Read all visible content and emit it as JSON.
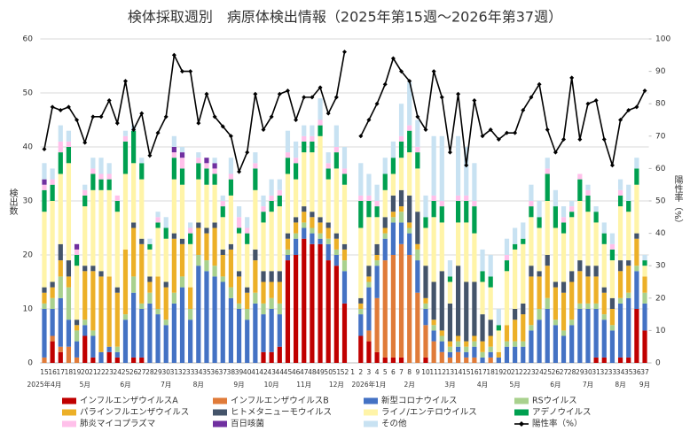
{
  "chart_data": {
    "type": "bar",
    "stacked": true,
    "title": "検体採取週別　病原体検出情報（2025年第15週～2026年第37週）",
    "y_label": "検出数",
    "y2_label": "陽性率（%）",
    "categories": [
      "15",
      "16",
      "17",
      "18",
      "19",
      "20",
      "21",
      "22",
      "23",
      "24",
      "25",
      "26",
      "27",
      "28",
      "29",
      "30",
      "31",
      "32",
      "33",
      "34",
      "35",
      "36",
      "37",
      "38",
      "39",
      "40",
      "41",
      "42",
      "43",
      "44",
      "45",
      "46",
      "47",
      "48",
      "49",
      "50",
      "51",
      "52",
      "1",
      "2",
      "3",
      "4",
      "5",
      "6",
      "7",
      "8",
      "9",
      "10",
      "11",
      "12",
      "13",
      "14",
      "15",
      "16",
      "17",
      "18",
      "19",
      "20",
      "21",
      "22",
      "23",
      "24",
      "25",
      "26",
      "27",
      "28",
      "29",
      "30",
      "31",
      "32",
      "33",
      "34",
      "35",
      "36",
      "37"
    ],
    "x_group_labels": [
      "2025年4月",
      null,
      null,
      null,
      null,
      "5月",
      null,
      null,
      null,
      null,
      "6月",
      null,
      null,
      null,
      null,
      "7月",
      null,
      null,
      null,
      "8月",
      null,
      null,
      null,
      null,
      "9月",
      null,
      null,
      null,
      "10月",
      null,
      null,
      null,
      "11月",
      null,
      null,
      null,
      "12月",
      null,
      null,
      null,
      "2026年1月",
      null,
      null,
      null,
      null,
      "2月",
      null,
      null,
      null,
      null,
      "3月",
      null,
      null,
      null,
      "4月",
      null,
      null,
      null,
      "5月",
      null,
      null,
      null,
      null,
      "6月",
      null,
      null,
      null,
      "7月",
      null,
      null,
      null,
      "8月",
      null,
      null,
      "9月"
    ],
    "ylim": [
      0,
      60
    ],
    "yticks": [
      0,
      10,
      20,
      30,
      40,
      50,
      60
    ],
    "y2lim": [
      0,
      100
    ],
    "y2ticks": [
      0,
      10,
      20,
      30,
      40,
      50,
      60,
      70,
      80,
      90,
      100
    ],
    "grid": true,
    "series": [
      {
        "name": "インフルエンザウイルスA",
        "color": "#c00000",
        "values": [
          0,
          4,
          2,
          0,
          0,
          5,
          1,
          0,
          2,
          1,
          0,
          1,
          1,
          0,
          0,
          0,
          0,
          0,
          0,
          0,
          0,
          0,
          0,
          0,
          0,
          0,
          0,
          2,
          2,
          3,
          19,
          20,
          23,
          22,
          22,
          19,
          18,
          11,
          null,
          5,
          4,
          2,
          1,
          1,
          1,
          0,
          0,
          1,
          0,
          0,
          0,
          0,
          0,
          0,
          0,
          0,
          0,
          0,
          0,
          0,
          0,
          0,
          0,
          0,
          0,
          0,
          0,
          0,
          1,
          1,
          0,
          1,
          1,
          10,
          6
        ]
      },
      {
        "name": "インフルエンザウイルスB",
        "color": "#e07b39",
        "values": [
          1,
          1,
          1,
          3,
          1,
          0,
          0,
          0,
          0,
          0,
          0,
          0,
          0,
          0,
          0,
          0,
          0,
          0,
          0,
          0,
          0,
          0,
          0,
          0,
          0,
          0,
          0,
          0,
          0,
          0,
          0,
          0,
          0,
          0,
          0,
          0,
          0,
          0,
          null,
          0,
          2,
          10,
          18,
          19,
          21,
          20,
          13,
          6,
          4,
          2,
          1,
          2,
          1,
          1,
          0,
          1,
          0,
          0,
          0,
          0,
          0,
          0,
          0,
          0,
          0,
          0,
          0,
          0,
          0,
          0,
          0,
          0,
          0,
          0,
          0
        ]
      },
      {
        "name": "新型コロナウイルス",
        "color": "#4472c4",
        "values": [
          9,
          5,
          9,
          5,
          3,
          2,
          4,
          2,
          1,
          1,
          8,
          12,
          9,
          11,
          9,
          7,
          11,
          14,
          8,
          18,
          17,
          16,
          15,
          12,
          10,
          8,
          11,
          7,
          8,
          6,
          1,
          3,
          2,
          2,
          1,
          3,
          2,
          6,
          null,
          4,
          8,
          6,
          4,
          6,
          4,
          4,
          6,
          3,
          2,
          2,
          1,
          1,
          1,
          2,
          1,
          1,
          1,
          3,
          3,
          3,
          6,
          8,
          10,
          7,
          5,
          7,
          10,
          10,
          9,
          7,
          6,
          10,
          11,
          7,
          5
        ]
      },
      {
        "name": "RSウイルス",
        "color": "#a9d18e",
        "values": [
          1,
          2,
          4,
          6,
          2,
          1,
          1,
          0,
          0,
          1,
          1,
          3,
          1,
          2,
          1,
          1,
          2,
          2,
          2,
          2,
          2,
          2,
          1,
          2,
          1,
          2,
          2,
          2,
          2,
          2,
          1,
          1,
          1,
          1,
          1,
          1,
          1,
          2,
          null,
          1,
          1,
          1,
          1,
          1,
          2,
          1,
          2,
          1,
          1,
          1,
          1,
          1,
          1,
          1,
          1,
          1,
          0,
          1,
          1,
          1,
          1,
          2,
          2,
          1,
          1,
          1,
          1,
          1,
          1,
          1,
          1,
          1,
          1,
          1,
          2
        ]
      },
      {
        "name": "パラインフルエンザウイルス",
        "color": "#ecb028",
        "values": [
          2,
          2,
          3,
          2,
          1,
          9,
          11,
          14,
          13,
          10,
          12,
          9,
          11,
          2,
          6,
          6,
          10,
          6,
          4,
          5,
          5,
          7,
          4,
          7,
          5,
          3,
          6,
          4,
          3,
          4,
          2,
          2,
          2,
          2,
          2,
          2,
          2,
          2,
          null,
          1,
          1,
          1,
          1,
          1,
          1,
          1,
          1,
          1,
          1,
          1,
          1,
          1,
          1,
          1,
          2,
          2,
          1,
          3,
          4,
          5,
          9,
          6,
          6,
          6,
          7,
          7,
          6,
          5,
          5,
          4,
          3,
          5,
          5,
          5,
          3
        ]
      },
      {
        "name": "ヒトメタニューモウイルス",
        "color": "#44546a",
        "values": [
          1,
          1,
          3,
          3,
          1,
          1,
          1,
          1,
          0,
          1,
          0,
          1,
          1,
          1,
          0,
          1,
          1,
          1,
          0,
          1,
          1,
          1,
          1,
          1,
          1,
          1,
          2,
          2,
          2,
          2,
          1,
          1,
          1,
          1,
          1,
          1,
          1,
          1,
          null,
          1,
          2,
          2,
          2,
          3,
          3,
          5,
          6,
          6,
          7,
          11,
          7,
          13,
          11,
          10,
          5,
          3,
          0,
          0,
          2,
          2,
          2,
          1,
          2,
          1,
          2,
          2,
          2,
          2,
          2,
          1,
          2,
          2,
          1,
          1,
          0
        ]
      },
      {
        "name": "ライノ/エンテロウイルス",
        "color": "#fff4a8",
        "values": [
          14,
          15,
          13,
          18,
          10,
          11,
          14,
          15,
          16,
          14,
          14,
          11,
          11,
          5,
          9,
          8,
          10,
          10,
          8,
          8,
          8,
          7,
          6,
          9,
          7,
          8,
          11,
          9,
          11,
          12,
          11,
          7,
          10,
          11,
          15,
          8,
          12,
          11,
          null,
          13,
          9,
          5,
          5,
          4,
          6,
          8,
          8,
          7,
          12,
          9,
          4,
          8,
          11,
          9,
          6,
          6,
          4,
          10,
          11,
          11,
          9,
          8,
          10,
          10,
          9,
          10,
          11,
          10,
          8,
          8,
          7,
          10,
          9,
          9,
          2
        ]
      },
      {
        "name": "アデノウイルス",
        "color": "#00a050",
        "values": [
          4,
          3,
          4,
          3,
          2,
          2,
          3,
          2,
          2,
          2,
          6,
          6,
          3,
          1,
          1,
          2,
          4,
          3,
          2,
          3,
          3,
          2,
          2,
          3,
          1,
          2,
          4,
          2,
          2,
          2,
          3,
          3,
          2,
          2,
          2,
          2,
          3,
          2,
          null,
          5,
          3,
          2,
          3,
          3,
          3,
          4,
          3,
          2,
          3,
          3,
          1,
          4,
          4,
          5,
          2,
          2,
          1,
          2,
          1,
          1,
          2,
          2,
          5,
          4,
          2,
          1,
          4,
          3,
          2,
          2,
          2,
          2,
          2,
          3,
          1
        ]
      },
      {
        "name": "肺炎マイコプラズマ",
        "color": "#ffc0ea",
        "values": [
          1,
          1,
          2,
          1,
          1,
          1,
          1,
          1,
          1,
          1,
          1,
          0,
          0,
          0,
          1,
          0,
          1,
          2,
          1,
          1,
          1,
          1,
          1,
          1,
          2,
          1,
          1,
          1,
          1,
          1,
          1,
          1,
          1,
          1,
          1,
          1,
          1,
          1,
          null,
          1,
          1,
          1,
          0,
          0,
          1,
          1,
          1,
          0,
          1,
          1,
          0,
          1,
          1,
          1,
          0,
          0,
          0,
          1,
          0,
          0,
          1,
          0,
          1,
          0,
          1,
          1,
          1,
          1,
          0,
          0,
          1,
          1,
          0,
          0,
          0
        ]
      },
      {
        "name": "百日咳菌",
        "color": "#7030a0",
        "values": [
          1,
          0,
          0,
          0,
          1,
          0,
          0,
          0,
          0,
          0,
          0,
          0,
          0,
          0,
          0,
          0,
          1,
          1,
          0,
          0,
          1,
          1,
          0,
          0,
          0,
          0,
          0,
          0,
          0,
          0,
          0,
          0,
          0,
          0,
          0,
          0,
          0,
          0,
          null,
          0,
          0,
          0,
          0,
          0,
          0,
          0,
          0,
          0,
          0,
          0,
          0,
          0,
          0,
          0,
          0,
          0,
          0,
          0,
          0,
          0,
          0,
          0,
          0,
          0,
          0,
          0,
          0,
          0,
          0,
          0,
          0,
          0,
          0,
          0,
          0
        ]
      },
      {
        "name": "その他",
        "color": "#c8e2f2",
        "values": [
          3,
          2,
          3,
          2,
          0,
          1,
          2,
          3,
          2,
          0,
          1,
          1,
          1,
          1,
          1,
          2,
          2,
          1,
          1,
          1,
          0,
          1,
          1,
          3,
          2,
          2,
          2,
          2,
          3,
          2,
          4,
          3,
          2,
          2,
          4,
          2,
          4,
          4,
          null,
          6,
          4,
          3,
          3,
          3,
          6,
          8,
          5,
          4,
          11,
          12,
          3,
          11,
          9,
          7,
          4,
          4,
          3,
          3,
          3,
          3,
          3,
          3,
          2,
          3,
          2,
          1,
          0,
          1,
          1,
          2,
          2,
          2,
          3,
          2,
          1
        ]
      },
      {
        "name": "陽性率（%）",
        "color": "#000000",
        "type": "line",
        "axis": "y2",
        "values": [
          66,
          79,
          78,
          79,
          75,
          68,
          76,
          76,
          81,
          74,
          87,
          72,
          77,
          64,
          71,
          76,
          95,
          90,
          90,
          74,
          83,
          76,
          73,
          70,
          59,
          65,
          83,
          72,
          76,
          83,
          84,
          75,
          82,
          82,
          85,
          77,
          82,
          96,
          null,
          70,
          75,
          80,
          86,
          94,
          90,
          87,
          76,
          72,
          90,
          82,
          65,
          83,
          61,
          81,
          70,
          72,
          69,
          71,
          71,
          78,
          82,
          86,
          72,
          65,
          69,
          88,
          69,
          80,
          81,
          69,
          61,
          75,
          78,
          79,
          84
        ]
      }
    ]
  }
}
